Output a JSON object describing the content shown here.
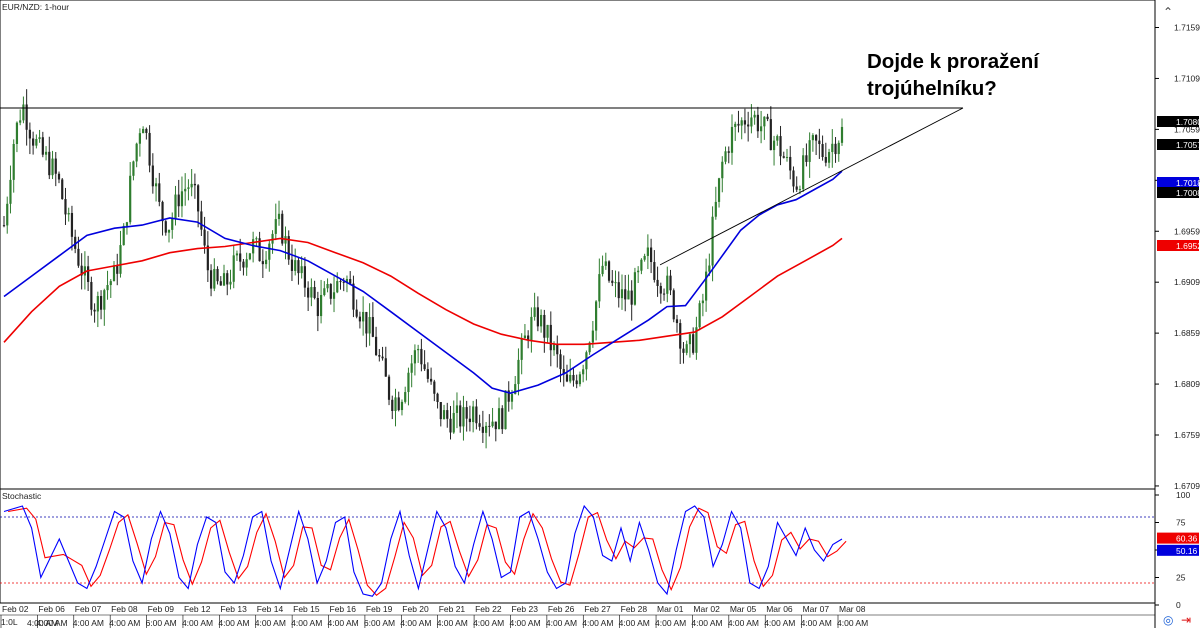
{
  "symbol_label": "EUR/NZD: 1-hour",
  "stochastic_label": "Stochastic",
  "headline": {
    "line1": "Dojde k proražení",
    "line2": "trojúhelníku?"
  },
  "bottom_left_label": "1:0L",
  "colors": {
    "candle_up": "#2f7d2f",
    "candle_down": "#222222",
    "ma_fast": "#0000dd",
    "ma_slow": "#ee0000",
    "stoch_k": "#0000ff",
    "stoch_d": "#ff0000",
    "overbought_line": "#0000aa",
    "oversold_line": "#ee0000"
  },
  "icons": {
    "top_right": "chevron-up-icon",
    "bottom_right_1": "crosshair-icon",
    "bottom_right_2": "arrow-right-icon"
  },
  "chart_data": {
    "type": "candlestick",
    "price_axis": {
      "ticks": [
        "1.7159",
        "1.7109",
        "1.7059",
        "1.7009",
        "1.6959",
        "1.6909",
        "1.6859",
        "1.6809",
        "1.6759",
        "1.6709"
      ],
      "range": [
        1.6706,
        1.7186
      ]
    },
    "price_boxes": [
      {
        "value": "1.7080",
        "bg": "#000000",
        "fg": "#ffffff"
      },
      {
        "value": "1.7057",
        "bg": "#000000",
        "fg": "#ffffff"
      },
      {
        "value": "1.7018",
        "bg": "#0000dd",
        "fg": "#ffffff"
      },
      {
        "value": "1.7008",
        "bg": "#000000",
        "fg": "#ffffff"
      },
      {
        "value": "1.6952",
        "bg": "#ee0000",
        "fg": "#ffffff"
      }
    ],
    "resistance_level": 1.708,
    "trendline": {
      "from": [
        "Mar 01",
        1.6926
      ],
      "to": [
        "Mar 08",
        1.708
      ]
    },
    "date_labels": [
      "Feb 02",
      "Feb 06",
      "Feb 07",
      "Feb 08",
      "Feb 09",
      "Feb 12",
      "Feb 13",
      "Feb 14",
      "Feb 15",
      "Feb 16",
      "Feb 19",
      "Feb 20",
      "Feb 21",
      "Feb 22",
      "Feb 23",
      "Feb 26",
      "Feb 27",
      "Feb 28",
      "Mar 01",
      "Mar 02",
      "Mar 05",
      "Mar 06",
      "Mar 07",
      "Mar 08"
    ],
    "time_labels": [
      "4:00 AM",
      "4:00 AM",
      "4:00 AM",
      "4:00 AM",
      "6:00 AM",
      "4:00 AM",
      "4:00 AM",
      "4:00 AM",
      "4:00 AM",
      "4:00 AM",
      "6:00 AM",
      "4:00 AM",
      "4:00 AM",
      "4:00 AM",
      "4:00 AM",
      "4:00 AM",
      "4:00 AM",
      "4:00 AM",
      "4:00 AM",
      "4:00 AM",
      "4:00 AM",
      "4:00 AM",
      "4:00 AM",
      "4:00 AM"
    ],
    "price_path": [
      [
        0,
        1.6965
      ],
      [
        1,
        1.7045
      ],
      [
        2,
        1.7085
      ],
      [
        3,
        1.7055
      ],
      [
        4,
        1.7035
      ],
      [
        5,
        1.7025
      ],
      [
        6,
        1.7005
      ],
      [
        7,
        1.6965
      ],
      [
        8,
        1.6935
      ],
      [
        9,
        1.6905
      ],
      [
        10,
        1.6885
      ],
      [
        11,
        1.6905
      ],
      [
        12,
        1.6915
      ],
      [
        13,
        1.6955
      ],
      [
        14,
        1.7025
      ],
      [
        15,
        1.7075
      ],
      [
        16,
        1.7025
      ],
      [
        17,
        1.6975
      ],
      [
        18,
        1.6965
      ],
      [
        19,
        1.6995
      ],
      [
        20,
        1.7005
      ],
      [
        21,
        1.6985
      ],
      [
        22,
        1.6925
      ],
      [
        23,
        1.6905
      ],
      [
        24,
        1.6905
      ],
      [
        25,
        1.6925
      ],
      [
        26,
        1.6935
      ],
      [
        27,
        1.6945
      ],
      [
        28,
        1.6935
      ],
      [
        29,
        1.6955
      ],
      [
        30,
        1.6965
      ],
      [
        31,
        1.6935
      ],
      [
        32,
        1.6915
      ],
      [
        33,
        1.6905
      ],
      [
        34,
        1.6885
      ],
      [
        35,
        1.6895
      ],
      [
        36,
        1.6905
      ],
      [
        37,
        1.6915
      ],
      [
        38,
        1.6895
      ],
      [
        39,
        1.6875
      ],
      [
        40,
        1.6855
      ],
      [
        41,
        1.6825
      ],
      [
        42,
        1.6795
      ],
      [
        43,
        1.6795
      ],
      [
        44,
        1.6825
      ],
      [
        45,
        1.6845
      ],
      [
        46,
        1.6815
      ],
      [
        47,
        1.6785
      ],
      [
        48,
        1.6775
      ],
      [
        49,
        1.6775
      ],
      [
        50,
        1.6775
      ],
      [
        51,
        1.6785
      ],
      [
        52,
        1.6775
      ],
      [
        53,
        1.6775
      ],
      [
        54,
        1.6775
      ],
      [
        55,
        1.6805
      ],
      [
        56,
        1.6835
      ],
      [
        57,
        1.6865
      ],
      [
        58,
        1.6875
      ],
      [
        59,
        1.6855
      ],
      [
        60,
        1.6835
      ],
      [
        61,
        1.6805
      ],
      [
        62,
        1.6815
      ],
      [
        63,
        1.6835
      ],
      [
        64,
        1.6875
      ],
      [
        65,
        1.6925
      ],
      [
        66,
        1.6905
      ],
      [
        67,
        1.6895
      ],
      [
        68,
        1.6895
      ],
      [
        69,
        1.6915
      ],
      [
        70,
        1.6935
      ],
      [
        71,
        1.6915
      ],
      [
        72,
        1.6905
      ],
      [
        73,
        1.6875
      ],
      [
        74,
        1.6835
      ],
      [
        75,
        1.6855
      ],
      [
        76,
        1.6895
      ],
      [
        77,
        1.6965
      ],
      [
        78,
        1.7025
      ],
      [
        79,
        1.7055
      ],
      [
        80,
        1.7065
      ],
      [
        81,
        1.7075
      ],
      [
        82,
        1.7065
      ],
      [
        83,
        1.7055
      ],
      [
        84,
        1.7045
      ],
      [
        85,
        1.7025
      ],
      [
        86,
        1.7005
      ],
      [
        87,
        1.7025
      ],
      [
        88,
        1.7045
      ],
      [
        89,
        1.7035
      ],
      [
        90,
        1.7045
      ],
      [
        91,
        1.7057
      ]
    ],
    "ma_fast_path": [
      [
        0,
        1.6895
      ],
      [
        3,
        1.6915
      ],
      [
        6,
        1.6935
      ],
      [
        9,
        1.6955
      ],
      [
        12,
        1.6962
      ],
      [
        15,
        1.6965
      ],
      [
        18,
        1.6972
      ],
      [
        21,
        1.6968
      ],
      [
        24,
        1.6952
      ],
      [
        27,
        1.6945
      ],
      [
        30,
        1.694
      ],
      [
        33,
        1.693
      ],
      [
        36,
        1.6915
      ],
      [
        39,
        1.69
      ],
      [
        42,
        1.688
      ],
      [
        45,
        1.686
      ],
      [
        48,
        1.684
      ],
      [
        51,
        1.682
      ],
      [
        53,
        1.6805
      ],
      [
        55,
        1.68
      ],
      [
        58,
        1.6808
      ],
      [
        61,
        1.682
      ],
      [
        64,
        1.6838
      ],
      [
        67,
        1.6855
      ],
      [
        70,
        1.6872
      ],
      [
        72,
        1.6885
      ],
      [
        74,
        1.6886
      ],
      [
        76,
        1.691
      ],
      [
        78,
        1.6935
      ],
      [
        80,
        1.696
      ],
      [
        82,
        1.6975
      ],
      [
        84,
        1.6985
      ],
      [
        86,
        1.699
      ],
      [
        88,
        1.7
      ],
      [
        90,
        1.701
      ],
      [
        91,
        1.7018
      ]
    ],
    "ma_slow_path": [
      [
        0,
        1.685
      ],
      [
        3,
        1.688
      ],
      [
        6,
        1.6905
      ],
      [
        9,
        1.692
      ],
      [
        12,
        1.6925
      ],
      [
        15,
        1.693
      ],
      [
        18,
        1.6938
      ],
      [
        21,
        1.6942
      ],
      [
        24,
        1.6944
      ],
      [
        27,
        1.6948
      ],
      [
        30,
        1.6952
      ],
      [
        33,
        1.6948
      ],
      [
        36,
        1.6938
      ],
      [
        39,
        1.6928
      ],
      [
        42,
        1.6915
      ],
      [
        45,
        1.6898
      ],
      [
        48,
        1.6882
      ],
      [
        51,
        1.6868
      ],
      [
        54,
        1.6858
      ],
      [
        57,
        1.6852
      ],
      [
        60,
        1.6848
      ],
      [
        63,
        1.6848
      ],
      [
        66,
        1.685
      ],
      [
        69,
        1.6852
      ],
      [
        72,
        1.6856
      ],
      [
        75,
        1.686
      ],
      [
        78,
        1.6875
      ],
      [
        81,
        1.6895
      ],
      [
        84,
        1.6915
      ],
      [
        87,
        1.693
      ],
      [
        90,
        1.6945
      ],
      [
        91,
        1.6952
      ]
    ],
    "stochastic": {
      "range": [
        0,
        100
      ],
      "ticks": [
        "100",
        "75",
        "50",
        "25",
        "0"
      ],
      "overbought": 80,
      "oversold": 20,
      "k_value": "60.36",
      "d_value": "50.16",
      "k_path": [
        [
          0,
          85
        ],
        [
          2,
          90
        ],
        [
          3,
          70
        ],
        [
          4,
          25
        ],
        [
          6,
          60
        ],
        [
          8,
          20
        ],
        [
          9,
          15
        ],
        [
          10,
          35
        ],
        [
          11,
          60
        ],
        [
          12,
          85
        ],
        [
          13,
          80
        ],
        [
          14,
          40
        ],
        [
          15,
          20
        ],
        [
          16,
          60
        ],
        [
          17,
          85
        ],
        [
          18,
          65
        ],
        [
          19,
          25
        ],
        [
          20,
          15
        ],
        [
          21,
          55
        ],
        [
          22,
          80
        ],
        [
          23,
          75
        ],
        [
          24,
          30
        ],
        [
          25,
          20
        ],
        [
          26,
          45
        ],
        [
          27,
          80
        ],
        [
          28,
          85
        ],
        [
          29,
          40
        ],
        [
          30,
          15
        ],
        [
          31,
          50
        ],
        [
          32,
          85
        ],
        [
          33,
          60
        ],
        [
          34,
          20
        ],
        [
          35,
          40
        ],
        [
          36,
          75
        ],
        [
          37,
          80
        ],
        [
          38,
          30
        ],
        [
          39,
          10
        ],
        [
          40,
          8
        ],
        [
          41,
          20
        ],
        [
          42,
          60
        ],
        [
          43,
          85
        ],
        [
          44,
          45
        ],
        [
          45,
          15
        ],
        [
          46,
          50
        ],
        [
          47,
          85
        ],
        [
          48,
          70
        ],
        [
          49,
          35
        ],
        [
          50,
          20
        ],
        [
          51,
          55
        ],
        [
          52,
          85
        ],
        [
          53,
          60
        ],
        [
          54,
          25
        ],
        [
          55,
          30
        ],
        [
          56,
          80
        ],
        [
          57,
          85
        ],
        [
          58,
          60
        ],
        [
          59,
          30
        ],
        [
          60,
          15
        ],
        [
          61,
          20
        ],
        [
          62,
          65
        ],
        [
          63,
          90
        ],
        [
          64,
          80
        ],
        [
          65,
          45
        ],
        [
          66,
          40
        ],
        [
          67,
          70
        ],
        [
          68,
          40
        ],
        [
          69,
          75
        ],
        [
          70,
          50
        ],
        [
          71,
          20
        ],
        [
          72,
          10
        ],
        [
          73,
          50
        ],
        [
          74,
          85
        ],
        [
          75,
          90
        ],
        [
          76,
          80
        ],
        [
          77,
          35
        ],
        [
          78,
          55
        ],
        [
          79,
          85
        ],
        [
          80,
          70
        ],
        [
          81,
          20
        ],
        [
          82,
          15
        ],
        [
          83,
          35
        ],
        [
          84,
          75
        ],
        [
          85,
          60
        ],
        [
          86,
          45
        ],
        [
          87,
          70
        ],
        [
          88,
          50
        ],
        [
          89,
          40
        ],
        [
          90,
          55
        ],
        [
          91,
          60
        ]
      ]
    }
  }
}
